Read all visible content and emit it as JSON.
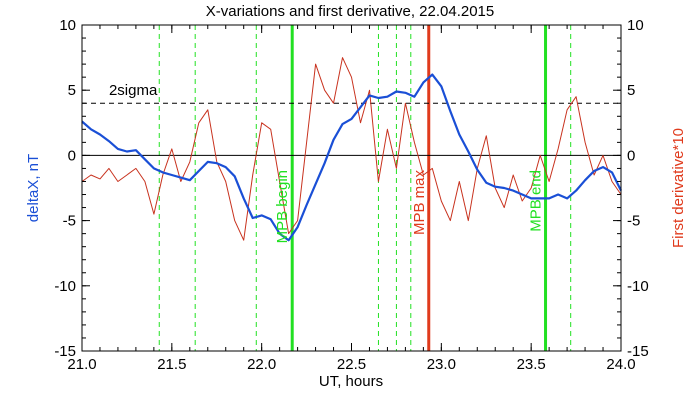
{
  "chart_data": {
    "type": "line",
    "title": "X-variations and first derivative, 22.04.2015",
    "xlabel": "UT, hours",
    "ylabel_left": "deltaX, nT",
    "ylabel_right": "First derivative*10",
    "xlim": [
      21.0,
      24.0
    ],
    "ylim": [
      -15,
      10
    ],
    "xticks": [
      "21.0",
      "21.5",
      "22.0",
      "22.5",
      "23.0",
      "23.5",
      "24.0"
    ],
    "yticks": [
      "10",
      "5",
      "0",
      "-5",
      "-10",
      "-15"
    ],
    "threshold": {
      "label": "2sigma",
      "value": 4
    },
    "colors": {
      "deltaX": "#1a4fd6",
      "derivative": "#c8321e",
      "mpb_boundary": "#22e022",
      "mpb_max": "#e03a1c",
      "guide": "#22e022"
    },
    "series": [
      {
        "name": "deltaX, nT",
        "x": [
          21.0,
          21.05,
          21.1,
          21.15,
          21.2,
          21.25,
          21.3,
          21.35,
          21.4,
          21.45,
          21.5,
          21.55,
          21.6,
          21.65,
          21.7,
          21.75,
          21.8,
          21.85,
          21.9,
          21.95,
          22.0,
          22.05,
          22.1,
          22.15,
          22.2,
          22.25,
          22.3,
          22.35,
          22.4,
          22.45,
          22.5,
          22.55,
          22.6,
          22.65,
          22.7,
          22.75,
          22.8,
          22.85,
          22.9,
          22.95,
          23.0,
          23.05,
          23.1,
          23.15,
          23.2,
          23.25,
          23.3,
          23.35,
          23.4,
          23.45,
          23.5,
          23.55,
          23.6,
          23.65,
          23.7,
          23.75,
          23.8,
          23.85,
          23.9,
          23.95,
          24.0
        ],
        "values": [
          2.6,
          2.0,
          1.6,
          1.1,
          0.5,
          0.3,
          0.4,
          -0.3,
          -1.0,
          -1.3,
          -1.5,
          -1.7,
          -1.9,
          -1.2,
          -0.5,
          -0.6,
          -0.9,
          -1.6,
          -3.3,
          -4.8,
          -4.6,
          -4.9,
          -6.0,
          -6.5,
          -5.5,
          -3.8,
          -2.2,
          -0.6,
          1.2,
          2.4,
          2.8,
          3.7,
          4.6,
          4.4,
          4.5,
          4.9,
          4.8,
          4.5,
          5.6,
          6.2,
          5.3,
          3.4,
          1.6,
          0.3,
          -1.1,
          -2.1,
          -2.4,
          -2.5,
          -2.7,
          -3.0,
          -3.3,
          -3.3,
          -3.3,
          -3.0,
          -3.3,
          -2.7,
          -1.9,
          -1.2,
          -0.9,
          -1.3,
          -2.7
        ]
      },
      {
        "name": "First derivative*10",
        "x": [
          21.0,
          21.05,
          21.1,
          21.15,
          21.2,
          21.25,
          21.3,
          21.35,
          21.4,
          21.45,
          21.5,
          21.55,
          21.6,
          21.65,
          21.7,
          21.75,
          21.8,
          21.85,
          21.9,
          21.95,
          22.0,
          22.05,
          22.1,
          22.15,
          22.2,
          22.25,
          22.3,
          22.35,
          22.4,
          22.45,
          22.5,
          22.55,
          22.6,
          22.65,
          22.7,
          22.75,
          22.8,
          22.85,
          22.9,
          22.95,
          23.0,
          23.05,
          23.1,
          23.15,
          23.2,
          23.25,
          23.3,
          23.35,
          23.4,
          23.45,
          23.5,
          23.55,
          23.6,
          23.65,
          23.7,
          23.75,
          23.8,
          23.85,
          23.9,
          23.95,
          24.0
        ],
        "values": [
          -2.0,
          -1.5,
          -1.8,
          -1.0,
          -2.0,
          -1.5,
          -1.0,
          -2.0,
          -4.5,
          -1.5,
          0.5,
          -2.0,
          -0.5,
          2.5,
          3.5,
          -0.5,
          -2.0,
          -5.0,
          -6.5,
          -1.5,
          2.5,
          2.0,
          -2.0,
          -6.0,
          -5.0,
          1.0,
          7.0,
          5.0,
          4.0,
          7.5,
          6.0,
          2.5,
          5.0,
          -2.0,
          2.0,
          -1.0,
          4.0,
          1.0,
          -1.5,
          -1.0,
          -3.5,
          -5.0,
          -2.0,
          -5.0,
          -1.0,
          1.5,
          -2.5,
          -4.0,
          -1.5,
          -3.5,
          -2.5,
          0.0,
          -2.0,
          0.5,
          3.5,
          4.5,
          1.0,
          -1.5,
          0.0,
          -2.0,
          -3.0
        ]
      }
    ],
    "vertical_lines": [
      {
        "x": 21.43,
        "style": "dashed",
        "label": ""
      },
      {
        "x": 21.63,
        "style": "dashed",
        "label": ""
      },
      {
        "x": 21.97,
        "style": "dashed",
        "label": ""
      },
      {
        "x": 22.17,
        "style": "solid",
        "label": "MPB begin"
      },
      {
        "x": 22.65,
        "style": "dashed",
        "label": ""
      },
      {
        "x": 22.75,
        "style": "dashed",
        "label": ""
      },
      {
        "x": 22.83,
        "style": "dashed",
        "label": ""
      },
      {
        "x": 22.93,
        "style": "solid",
        "label": "MPB max"
      },
      {
        "x": 23.58,
        "style": "solid",
        "label": "MPB end"
      },
      {
        "x": 23.72,
        "style": "dashed",
        "label": ""
      }
    ]
  }
}
